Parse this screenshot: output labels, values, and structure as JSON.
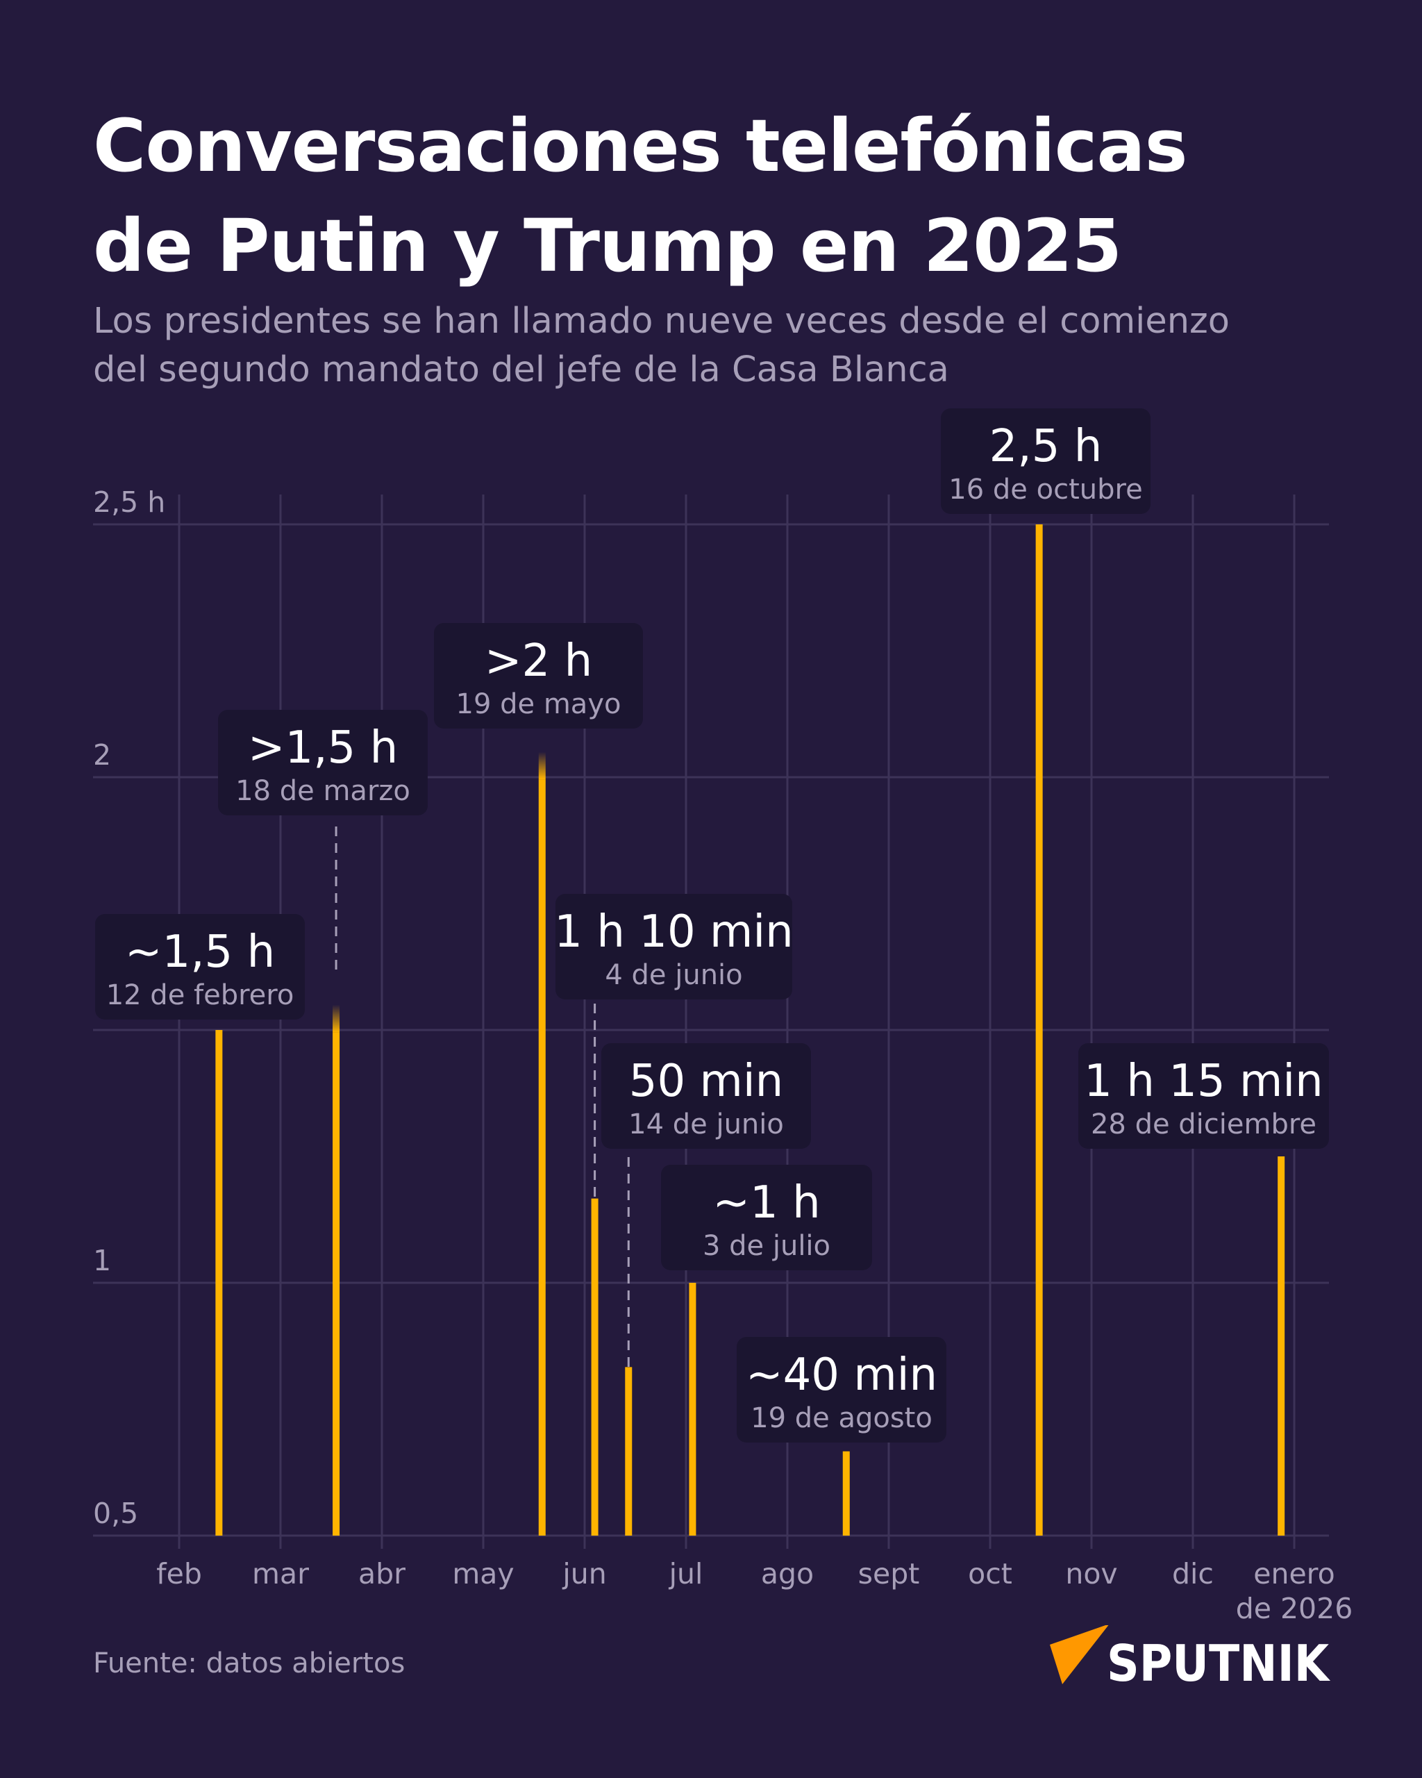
{
  "title_lines": [
    "Conversaciones telefónicas",
    "de Putin y Trump en 2025"
  ],
  "subtitle_lines": [
    "Los presidentes se han llamado nueve veces desde el comienzo",
    "del segundo mandato del jefe de la Casa Blanca"
  ],
  "source": "Fuente: datos abiertos",
  "logo": {
    "text": "SPUTNIK",
    "icon": "sputnik-arrow-icon",
    "color": "#ff9800"
  },
  "colors": {
    "background": "#241a3d",
    "bar": "#ffb400",
    "label_box": "#1b1530",
    "grid": "#3d3358",
    "muted_text": "#a79fb8"
  },
  "chart_data": {
    "type": "bar",
    "title": "",
    "xlabel": "",
    "ylabel": "",
    "ylim": [
      0.5,
      2.5
    ],
    "grid": true,
    "y_ticks": [
      {
        "value": 2.5,
        "label": "2,5 h"
      },
      {
        "value": 2,
        "label": "2"
      },
      {
        "value": 1.5,
        "label": ""
      },
      {
        "value": 1,
        "label": "1"
      },
      {
        "value": 0.5,
        "label": "0,5"
      }
    ],
    "x_ticks": [
      "feb",
      "mar",
      "abr",
      "may",
      "jun",
      "jul",
      "ago",
      "sept",
      "oct",
      "nov",
      "dic",
      "enero de 2026"
    ],
    "points": [
      {
        "date": "2025-02-12",
        "value_h": 1.5,
        "label": "~1,5 h",
        "date_label": "12 de febrero"
      },
      {
        "date": "2025-03-18",
        "value_h": 1.55,
        "label": ">1,5 h",
        "date_label": "18 de marzo",
        "open_ended": true
      },
      {
        "date": "2025-05-19",
        "value_h": 2.05,
        "label": ">2 h",
        "date_label": "19 de mayo",
        "open_ended": true
      },
      {
        "date": "2025-06-04",
        "value_h": 1.1667,
        "label": "1 h 10 min",
        "date_label": "4 de junio"
      },
      {
        "date": "2025-06-14",
        "value_h": 0.8333,
        "label": "50 min",
        "date_label": "14 de junio"
      },
      {
        "date": "2025-07-03",
        "value_h": 1.0,
        "label": "~1 h",
        "date_label": "3 de julio"
      },
      {
        "date": "2025-08-19",
        "value_h": 0.6667,
        "label": "~40 min",
        "date_label": "19 de agosto"
      },
      {
        "date": "2025-10-16",
        "value_h": 2.5,
        "label": "2,5 h",
        "date_label": "16 de octubre"
      },
      {
        "date": "2025-12-28",
        "value_h": 1.25,
        "label": "1 h 15 min",
        "date_label": "28 de diciembre"
      }
    ]
  }
}
